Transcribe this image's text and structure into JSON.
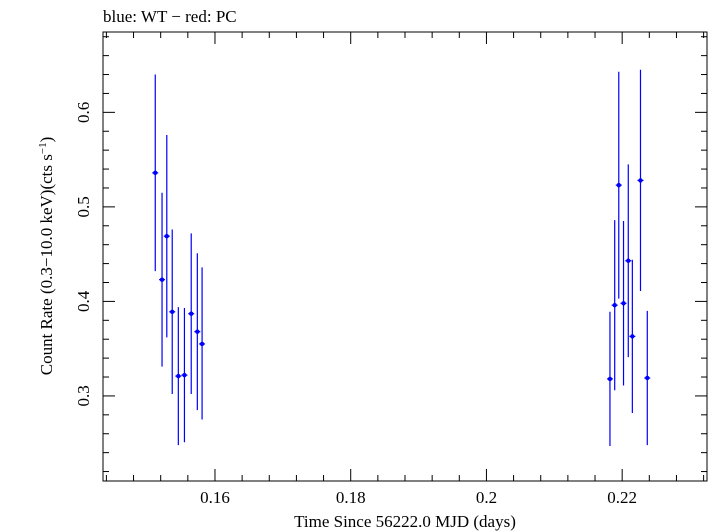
{
  "chart_data": {
    "type": "scatter",
    "annotation": "blue: WT − red: PC",
    "xlabel": "Time Since 56222.0 MJD (days)",
    "ylabel_main": "Count Rate (0.3−10.0 keV)(cts s",
    "ylabel_sup": "−1",
    "ylabel_close": ")",
    "xlim": [
      0.1435,
      0.2325
    ],
    "ylim": [
      0.21,
      0.685
    ],
    "xticks": [
      0.16,
      0.18,
      0.2,
      0.22
    ],
    "xtick_labels": [
      "0.16",
      "0.18",
      "0.2",
      "0.22"
    ],
    "yticks": [
      0.3,
      0.4,
      0.5,
      0.6
    ],
    "ytick_labels": [
      "0.3",
      "0.4",
      "0.5",
      "0.6"
    ],
    "grid": false,
    "series": [
      {
        "color": "#0000ff",
        "points": [
          {
            "x": 0.1512,
            "y": 0.536,
            "ylo": 0.432,
            "yhi": 0.64
          },
          {
            "x": 0.1522,
            "y": 0.423,
            "ylo": 0.331,
            "yhi": 0.515
          },
          {
            "x": 0.1529,
            "y": 0.469,
            "ylo": 0.362,
            "yhi": 0.576
          },
          {
            "x": 0.1537,
            "y": 0.389,
            "ylo": 0.302,
            "yhi": 0.476
          },
          {
            "x": 0.1546,
            "y": 0.321,
            "ylo": 0.248,
            "yhi": 0.394
          },
          {
            "x": 0.1555,
            "y": 0.322,
            "ylo": 0.251,
            "yhi": 0.393
          },
          {
            "x": 0.1565,
            "y": 0.387,
            "ylo": 0.302,
            "yhi": 0.472
          },
          {
            "x": 0.1574,
            "y": 0.368,
            "ylo": 0.285,
            "yhi": 0.451
          },
          {
            "x": 0.1581,
            "y": 0.355,
            "ylo": 0.275,
            "yhi": 0.436
          },
          {
            "x": 0.2182,
            "y": 0.318,
            "ylo": 0.247,
            "yhi": 0.389
          },
          {
            "x": 0.2189,
            "y": 0.396,
            "ylo": 0.306,
            "yhi": 0.486
          },
          {
            "x": 0.2195,
            "y": 0.523,
            "ylo": 0.403,
            "yhi": 0.643
          },
          {
            "x": 0.2202,
            "y": 0.398,
            "ylo": 0.311,
            "yhi": 0.485
          },
          {
            "x": 0.2209,
            "y": 0.443,
            "ylo": 0.341,
            "yhi": 0.545
          },
          {
            "x": 0.2215,
            "y": 0.363,
            "ylo": 0.282,
            "yhi": 0.444
          },
          {
            "x": 0.2227,
            "y": 0.528,
            "ylo": 0.411,
            "yhi": 0.645
          },
          {
            "x": 0.2237,
            "y": 0.319,
            "ylo": 0.248,
            "yhi": 0.39
          }
        ]
      }
    ]
  }
}
